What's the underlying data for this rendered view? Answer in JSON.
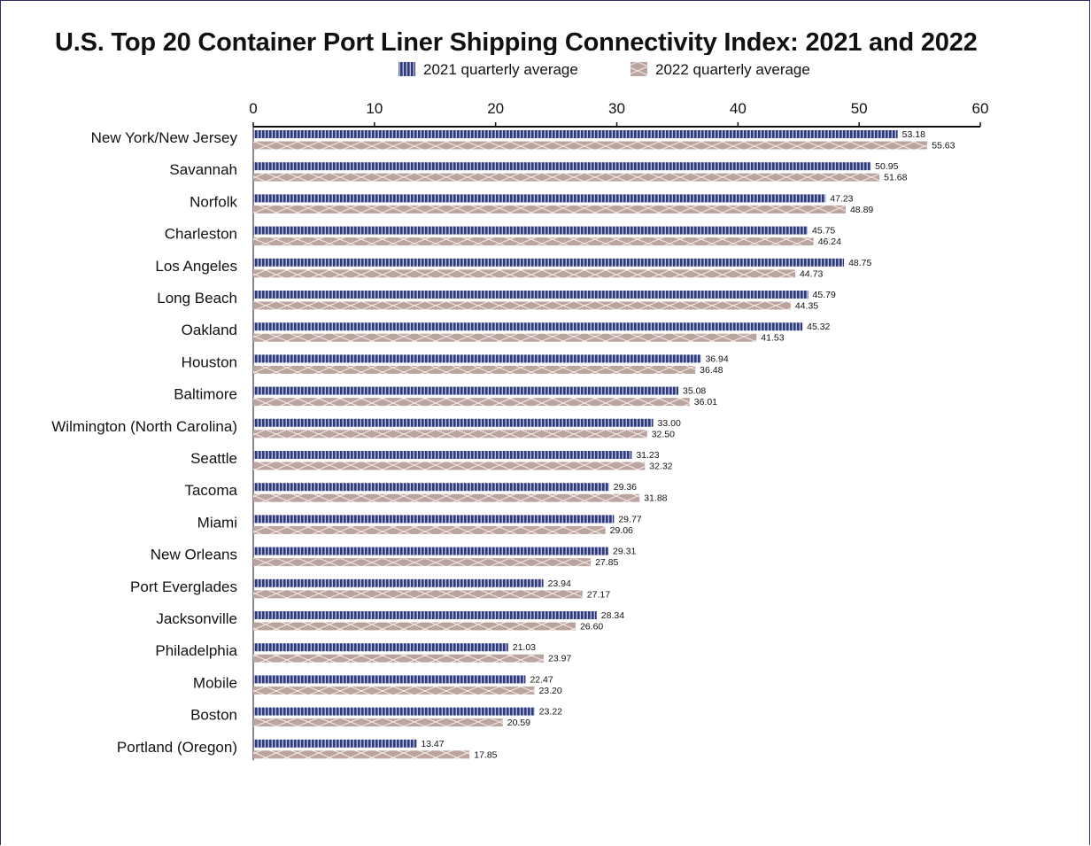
{
  "chart_data": {
    "type": "bar",
    "orientation": "horizontal",
    "title": "U.S. Top 20 Container Port Liner Shipping Connectivity Index: 2021 and 2022",
    "xlim": [
      0,
      60
    ],
    "xticks": [
      0,
      10,
      20,
      30,
      40,
      50,
      60
    ],
    "legend_position": "top",
    "categories": [
      "New York/New Jersey",
      "Savannah",
      "Norfolk",
      "Charleston",
      "Los Angeles",
      "Long Beach",
      "Oakland",
      "Houston",
      "Baltimore",
      "Wilmington (North Carolina)",
      "Seattle",
      "Tacoma",
      "Miami",
      "New Orleans",
      "Port Everglades",
      "Jacksonville",
      "Philadelphia",
      "Mobile",
      "Boston",
      "Portland (Oregon)"
    ],
    "series": [
      {
        "name": "2021 quarterly average",
        "color": "#2e3a7a",
        "values": [
          53.18,
          50.95,
          47.23,
          45.75,
          48.75,
          45.79,
          45.32,
          36.94,
          35.08,
          33.0,
          31.23,
          29.36,
          29.77,
          29.31,
          23.94,
          28.34,
          21.03,
          22.47,
          23.22,
          13.47
        ],
        "labels": [
          "53.18",
          "50.95",
          "47.23",
          "45.75",
          "48.75",
          "45.79",
          "45.32",
          "36.94",
          "35.08",
          "33.00",
          "31.23",
          "29.36",
          "29.77",
          "29.31",
          "23.94",
          "28.34",
          "21.03",
          "22.47",
          "23.22",
          "13.47"
        ]
      },
      {
        "name": "2022 quarterly average",
        "color": "#bba49d",
        "values": [
          55.63,
          51.68,
          48.89,
          46.24,
          44.73,
          44.35,
          41.53,
          36.48,
          36.01,
          32.5,
          32.32,
          31.88,
          29.06,
          27.85,
          27.17,
          26.6,
          23.97,
          23.2,
          20.59,
          17.85
        ],
        "labels": [
          "55.63",
          "51.68",
          "48.89",
          "46.24",
          "44.73",
          "44.35",
          "41.53",
          "36.48",
          "36.01",
          "32.50",
          "32.32",
          "31.88",
          "29.06",
          "27.85",
          "27.17",
          "26.60",
          "23.97",
          "23.20",
          "20.59",
          "17.85"
        ]
      }
    ]
  }
}
